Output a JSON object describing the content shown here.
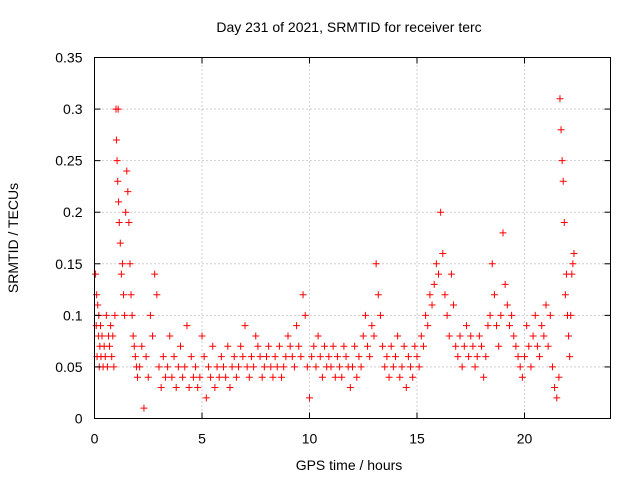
{
  "chart_data": {
    "type": "scatter",
    "title": "Day 231 of 2021, SRMTID for receiver terc",
    "xlabel": "GPS time / hours",
    "ylabel": "SRMTID / TECUs",
    "xlim": [
      0,
      24
    ],
    "ylim": [
      0,
      0.35
    ],
    "xticks": [
      0,
      5,
      10,
      15,
      20
    ],
    "xtick_labels": [
      "0",
      "5",
      "10",
      "15",
      "20"
    ],
    "yticks": [
      0,
      0.05,
      0.1,
      0.15,
      0.2,
      0.25,
      0.3,
      0.35
    ],
    "ytick_labels": [
      "0",
      "0.05",
      "0.1",
      "0.15",
      "0.2",
      "0.25",
      "0.3",
      "0.35"
    ],
    "grid": true,
    "marker": "plus",
    "color": "#ff0000",
    "series": [
      {
        "name": "SRMTID",
        "x": [
          0.05,
          0.08,
          0.1,
          0.12,
          0.15,
          0.18,
          0.2,
          0.22,
          0.25,
          0.28,
          0.3,
          0.35,
          0.4,
          0.45,
          0.5,
          0.55,
          0.6,
          0.65,
          0.7,
          0.75,
          0.8,
          0.85,
          0.9,
          0.95,
          1.0,
          1.02,
          1.05,
          1.08,
          1.1,
          1.12,
          1.15,
          1.2,
          1.25,
          1.3,
          1.35,
          1.4,
          1.45,
          1.5,
          1.55,
          1.6,
          1.65,
          1.7,
          1.75,
          1.8,
          1.85,
          1.9,
          1.95,
          2.0,
          2.1,
          2.2,
          2.3,
          2.4,
          2.5,
          2.6,
          2.7,
          2.8,
          2.9,
          3.0,
          3.1,
          3.2,
          3.3,
          3.4,
          3.5,
          3.6,
          3.7,
          3.8,
          3.9,
          4.0,
          4.1,
          4.2,
          4.3,
          4.4,
          4.5,
          4.6,
          4.7,
          4.8,
          4.9,
          5.0,
          5.1,
          5.2,
          5.3,
          5.4,
          5.5,
          5.6,
          5.7,
          5.8,
          5.9,
          6.0,
          6.1,
          6.2,
          6.3,
          6.4,
          6.5,
          6.6,
          6.7,
          6.8,
          6.9,
          7.0,
          7.1,
          7.2,
          7.3,
          7.4,
          7.5,
          7.6,
          7.7,
          7.8,
          7.9,
          8.0,
          8.1,
          8.2,
          8.3,
          8.4,
          8.5,
          8.6,
          8.7,
          8.8,
          8.9,
          9.0,
          9.1,
          9.2,
          9.3,
          9.4,
          9.5,
          9.6,
          9.7,
          9.8,
          9.9,
          10.0,
          10.1,
          10.2,
          10.3,
          10.4,
          10.5,
          10.6,
          10.7,
          10.8,
          10.9,
          11.0,
          11.1,
          11.2,
          11.3,
          11.4,
          11.5,
          11.6,
          11.7,
          11.8,
          11.9,
          12.0,
          12.1,
          12.2,
          12.3,
          12.4,
          12.5,
          12.6,
          12.7,
          12.8,
          12.9,
          13.0,
          13.1,
          13.2,
          13.3,
          13.4,
          13.5,
          13.6,
          13.7,
          13.8,
          13.9,
          14.0,
          14.1,
          14.2,
          14.3,
          14.4,
          14.5,
          14.6,
          14.7,
          14.8,
          14.9,
          15.0,
          15.1,
          15.2,
          15.3,
          15.4,
          15.5,
          15.6,
          15.7,
          15.8,
          15.9,
          16.0,
          16.1,
          16.2,
          16.3,
          16.4,
          16.5,
          16.6,
          16.7,
          16.8,
          16.9,
          17.0,
          17.1,
          17.2,
          17.3,
          17.4,
          17.5,
          17.6,
          17.7,
          17.8,
          17.9,
          18.0,
          18.1,
          18.2,
          18.3,
          18.4,
          18.5,
          18.6,
          18.7,
          18.8,
          18.9,
          19.0,
          19.1,
          19.2,
          19.3,
          19.4,
          19.5,
          19.6,
          19.7,
          19.8,
          19.9,
          20.0,
          20.1,
          20.2,
          20.3,
          20.4,
          20.5,
          20.6,
          20.7,
          20.8,
          20.9,
          21.0,
          21.1,
          21.2,
          21.3,
          21.4,
          21.5,
          21.6,
          21.65,
          21.7,
          21.75,
          21.8,
          21.85,
          21.9,
          21.95,
          22.0,
          22.05,
          22.1,
          22.15,
          22.2,
          22.25,
          22.3
        ],
        "y": [
          0.14,
          0.09,
          0.12,
          0.06,
          0.11,
          0.08,
          0.1,
          0.05,
          0.07,
          0.09,
          0.06,
          0.08,
          0.05,
          0.07,
          0.06,
          0.1,
          0.05,
          0.08,
          0.07,
          0.09,
          0.06,
          0.08,
          0.05,
          0.1,
          0.3,
          0.27,
          0.25,
          0.23,
          0.3,
          0.21,
          0.19,
          0.17,
          0.14,
          0.15,
          0.12,
          0.1,
          0.2,
          0.24,
          0.22,
          0.19,
          0.15,
          0.12,
          0.1,
          0.08,
          0.07,
          0.06,
          0.05,
          0.04,
          0.05,
          0.07,
          0.01,
          0.06,
          0.04,
          0.1,
          0.08,
          0.14,
          0.12,
          0.05,
          0.03,
          0.06,
          0.04,
          0.05,
          0.08,
          0.04,
          0.06,
          0.03,
          0.05,
          0.07,
          0.04,
          0.05,
          0.09,
          0.03,
          0.06,
          0.04,
          0.05,
          0.03,
          0.04,
          0.08,
          0.06,
          0.02,
          0.05,
          0.04,
          0.07,
          0.03,
          0.05,
          0.04,
          0.06,
          0.05,
          0.04,
          0.07,
          0.03,
          0.05,
          0.06,
          0.04,
          0.05,
          0.07,
          0.06,
          0.09,
          0.05,
          0.04,
          0.06,
          0.05,
          0.08,
          0.07,
          0.06,
          0.04,
          0.05,
          0.06,
          0.07,
          0.05,
          0.04,
          0.06,
          0.05,
          0.07,
          0.04,
          0.05,
          0.06,
          0.08,
          0.07,
          0.06,
          0.05,
          0.09,
          0.07,
          0.06,
          0.12,
          0.1,
          0.05,
          0.02,
          0.06,
          0.07,
          0.05,
          0.08,
          0.06,
          0.04,
          0.07,
          0.05,
          0.06,
          0.05,
          0.07,
          0.04,
          0.06,
          0.05,
          0.04,
          0.07,
          0.06,
          0.05,
          0.03,
          0.05,
          0.07,
          0.04,
          0.06,
          0.05,
          0.08,
          0.1,
          0.07,
          0.06,
          0.09,
          0.08,
          0.15,
          0.12,
          0.1,
          0.07,
          0.05,
          0.06,
          0.04,
          0.07,
          0.05,
          0.06,
          0.08,
          0.04,
          0.05,
          0.07,
          0.03,
          0.06,
          0.05,
          0.04,
          0.07,
          0.06,
          0.05,
          0.08,
          0.07,
          0.1,
          0.09,
          0.12,
          0.11,
          0.13,
          0.15,
          0.14,
          0.2,
          0.16,
          0.12,
          0.1,
          0.08,
          0.14,
          0.11,
          0.07,
          0.06,
          0.08,
          0.05,
          0.07,
          0.09,
          0.06,
          0.08,
          0.07,
          0.05,
          0.06,
          0.08,
          0.07,
          0.04,
          0.06,
          0.09,
          0.1,
          0.15,
          0.12,
          0.09,
          0.07,
          0.1,
          0.18,
          0.13,
          0.11,
          0.09,
          0.1,
          0.08,
          0.07,
          0.06,
          0.05,
          0.04,
          0.06,
          0.09,
          0.07,
          0.05,
          0.08,
          0.1,
          0.07,
          0.06,
          0.09,
          0.08,
          0.11,
          0.07,
          0.1,
          0.05,
          0.03,
          0.02,
          0.04,
          0.31,
          0.28,
          0.25,
          0.23,
          0.19,
          0.12,
          0.14,
          0.1,
          0.08,
          0.06,
          0.1,
          0.14,
          0.15,
          0.16
        ]
      }
    ]
  }
}
